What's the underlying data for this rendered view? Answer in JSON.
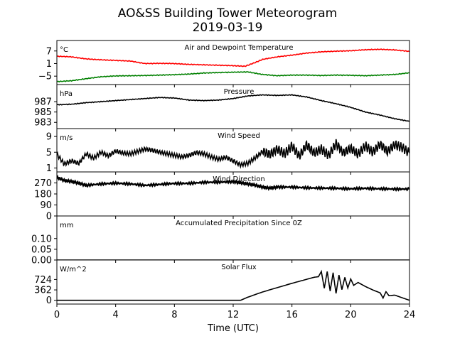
{
  "figure": {
    "title": "AO&SS Building Tower Meteorogram",
    "subtitle": "2019-03-19",
    "xlabel": "Time (UTC)"
  },
  "chart_data": [
    {
      "id": "temp",
      "type": "line",
      "title": "Air and Dewpoint Temperature",
      "unit_label": "°C",
      "xlim": [
        0,
        24
      ],
      "ylim": [
        -9,
        12
      ],
      "yticks": [
        -5,
        1,
        7
      ],
      "ytick_labels": [
        "−5",
        "1",
        "7"
      ],
      "xticks": [
        0,
        4,
        8,
        12,
        16,
        20,
        24
      ],
      "series": [
        {
          "key": "air",
          "color": "#ff0000",
          "x": [
            0,
            1,
            2,
            3,
            4,
            5,
            6,
            7,
            8,
            9,
            10,
            11,
            12,
            12.8,
            13.5,
            14,
            15,
            16,
            17,
            18,
            19,
            20,
            21,
            22,
            23,
            24
          ],
          "y": [
            4.5,
            4.2,
            3.2,
            2.8,
            2.5,
            2.2,
            1.0,
            1.1,
            1.0,
            0.6,
            0.4,
            0.2,
            0.0,
            -0.3,
            1.5,
            3.0,
            4.2,
            5.0,
            6.0,
            6.6,
            6.9,
            7.1,
            7.6,
            7.8,
            7.5,
            6.8
          ]
        },
        {
          "key": "dewpoint",
          "color": "#008000",
          "x": [
            0,
            1,
            2,
            3,
            4,
            5,
            6,
            7,
            8,
            9,
            10,
            11,
            12,
            13,
            14,
            15,
            16,
            17,
            18,
            19,
            20,
            21,
            22,
            23,
            24
          ],
          "y": [
            -7.6,
            -7.2,
            -6.2,
            -5.3,
            -4.9,
            -4.8,
            -4.7,
            -4.5,
            -4.3,
            -4.0,
            -3.5,
            -3.3,
            -3.1,
            -3.0,
            -4.2,
            -4.8,
            -4.5,
            -4.5,
            -4.7,
            -4.5,
            -4.6,
            -4.8,
            -4.5,
            -4.2,
            -3.4
          ]
        }
      ]
    },
    {
      "id": "pressure",
      "type": "line",
      "title": "Pressure",
      "unit_label": "hPa",
      "xlim": [
        0,
        24
      ],
      "ylim": [
        981.8,
        990.3
      ],
      "yticks": [
        983,
        985,
        987
      ],
      "ytick_labels": [
        "983",
        "985",
        "987"
      ],
      "xticks": [
        0,
        4,
        8,
        12,
        16,
        20,
        24
      ],
      "series": [
        {
          "key": "pressure",
          "color": "#000000",
          "x": [
            0,
            1,
            2,
            3,
            4,
            5,
            6,
            7,
            8,
            9,
            10,
            11,
            12,
            13,
            14,
            15,
            16,
            17,
            18,
            19,
            20,
            21,
            22,
            23,
            24
          ],
          "y": [
            986.4,
            986.5,
            986.8,
            987.0,
            987.2,
            987.4,
            987.6,
            987.8,
            987.7,
            987.3,
            987.2,
            987.3,
            987.6,
            988.1,
            988.3,
            988.2,
            988.3,
            987.9,
            987.2,
            986.6,
            985.9,
            985.0,
            984.4,
            983.7,
            983.2
          ]
        }
      ]
    },
    {
      "id": "wind_speed",
      "type": "line",
      "title": "Wind Speed",
      "unit_label": "m/s",
      "xlim": [
        0,
        24
      ],
      "ylim": [
        0,
        11
      ],
      "yticks": [
        1,
        5,
        9
      ],
      "ytick_labels": [
        "1",
        "5",
        "9"
      ],
      "xticks": [
        0,
        4,
        8,
        12,
        16,
        20,
        24
      ],
      "series": [
        {
          "key": "speed",
          "color": "#000000",
          "x": [
            0,
            0.5,
            1,
            1.5,
            2,
            2.5,
            3,
            3.5,
            4,
            4.5,
            5,
            5.5,
            6,
            6.5,
            7,
            7.5,
            8,
            8.5,
            9,
            9.5,
            10,
            10.5,
            11,
            11.5,
            12,
            12.5,
            13,
            13.5,
            14,
            14.5,
            15,
            15.5,
            16,
            16.5,
            17,
            17.5,
            18,
            18.5,
            19,
            19.5,
            20,
            20.5,
            21,
            21.5,
            22,
            22.5,
            23,
            23.5,
            24
          ],
          "y": [
            4.5,
            2.0,
            2.8,
            2.2,
            4.6,
            3.5,
            5.0,
            4.1,
            5.3,
            4.8,
            4.6,
            5.2,
            5.8,
            5.5,
            5.0,
            4.6,
            4.2,
            3.8,
            4.2,
            4.9,
            4.6,
            3.8,
            3.2,
            3.7,
            2.8,
            1.8,
            2.2,
            3.6,
            5.2,
            4.4,
            5.8,
            4.6,
            6.6,
            4.0,
            6.9,
            4.8,
            5.8,
            4.2,
            7.2,
            4.8,
            6.0,
            4.5,
            6.6,
            5.0,
            7.0,
            5.2,
            6.9,
            6.2,
            4.8
          ]
        }
      ]
    },
    {
      "id": "wind_direction",
      "type": "line",
      "title": "Wind Direction",
      "unit_label": "°",
      "xlim": [
        0,
        24
      ],
      "ylim": [
        0,
        360
      ],
      "yticks": [
        0,
        90,
        180,
        270
      ],
      "ytick_labels": [
        "0",
        "90",
        "180",
        "270"
      ],
      "xticks": [
        0,
        4,
        8,
        12,
        16,
        20,
        24
      ],
      "series": [
        {
          "key": "direction",
          "color": "#000000",
          "x": [
            0,
            0.5,
            1,
            1.5,
            2,
            3,
            4,
            5,
            6,
            7,
            8,
            9,
            10,
            11,
            12,
            12.5,
            13,
            13.5,
            14,
            14.5,
            15,
            16,
            17,
            18,
            19,
            20,
            21,
            22,
            23,
            24
          ],
          "y": [
            315,
            290,
            282,
            268,
            250,
            262,
            268,
            262,
            250,
            258,
            266,
            266,
            275,
            276,
            280,
            272,
            262,
            252,
            235,
            228,
            236,
            236,
            230,
            228,
            226,
            222,
            226,
            222,
            220,
            220
          ]
        }
      ]
    },
    {
      "id": "precip",
      "type": "line",
      "title": "Accumulated Precipitation Since 0Z",
      "unit_label": "mm",
      "xlim": [
        0,
        24
      ],
      "ylim": [
        0,
        0.205
      ],
      "yticks": [
        0.0,
        0.05,
        0.1
      ],
      "ytick_labels": [
        "0.00",
        "0.05",
        "0.10"
      ],
      "xticks": [
        0,
        4,
        8,
        12,
        16,
        20,
        24
      ],
      "series": [
        {
          "key": "precip",
          "color": "#000000",
          "x": [
            0,
            24
          ],
          "y": [
            0,
            0
          ]
        }
      ]
    },
    {
      "id": "solar",
      "type": "line",
      "title": "Solar Flux",
      "unit_label": "W/m^2",
      "xlim": [
        0,
        24
      ],
      "ylim": [
        -130,
        1400
      ],
      "yticks": [
        0,
        362,
        724
      ],
      "ytick_labels": [
        "0",
        "362",
        "724"
      ],
      "xticks": [
        0,
        4,
        8,
        12,
        16,
        20,
        24
      ],
      "xtick_labels": [
        "0",
        "4",
        "8",
        "12",
        "16",
        "20",
        "24"
      ],
      "series": [
        {
          "key": "solar",
          "color": "#000000",
          "x": [
            0,
            11,
            12.5,
            13,
            14,
            15,
            16,
            17,
            17.5,
            17.8,
            18,
            18.2,
            18.4,
            18.6,
            18.8,
            19,
            19.2,
            19.4,
            19.6,
            19.8,
            20,
            20.2,
            20.5,
            21,
            21.5,
            22,
            22.2,
            22.4,
            22.6,
            23,
            23.5,
            24
          ],
          "y": [
            0,
            0,
            0,
            110,
            290,
            440,
            590,
            730,
            800,
            820,
            1000,
            420,
            1000,
            320,
            960,
            240,
            880,
            370,
            800,
            430,
            740,
            520,
            620,
            480,
            360,
            260,
            80,
            300,
            160,
            180,
            90,
            0
          ]
        }
      ]
    }
  ]
}
